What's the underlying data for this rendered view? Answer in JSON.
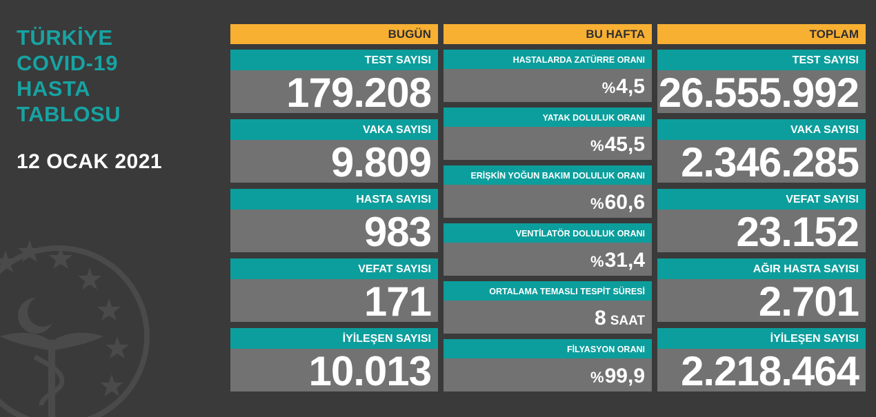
{
  "title_lines": [
    "TÜRKİYE",
    "COVID-19",
    "HASTA",
    "TABLOSU"
  ],
  "date": "12 OCAK 2021",
  "colors": {
    "background": "#3a3a3a",
    "header": "#f8b033",
    "label": "#0c9e9c",
    "value": "#727272",
    "title": "#17a3a3"
  },
  "emblem": {
    "icon": "ministry-of-health-emblem-icon"
  },
  "today": {
    "header": "BUGÜN",
    "items": [
      {
        "label": "TEST SAYISI",
        "value": "179.208"
      },
      {
        "label": "VAKA SAYISI",
        "value": "9.809"
      },
      {
        "label": "HASTA SAYISI",
        "value": "983"
      },
      {
        "label": "VEFAT SAYISI",
        "value": "171"
      },
      {
        "label": "İYİLEŞEN SAYISI",
        "value": "10.013"
      }
    ]
  },
  "week": {
    "header": "BU HAFTA",
    "items": [
      {
        "label": "HASTALARDA ZATÜRRE ORANI",
        "prefix": "%",
        "value": "4,5",
        "unit": ""
      },
      {
        "label": "YATAK DOLULUK ORANI",
        "prefix": "%",
        "value": "45,5",
        "unit": ""
      },
      {
        "label": "ERİŞKİN YOĞUN BAKIM DOLULUK ORANI",
        "prefix": "%",
        "value": "60,6",
        "unit": ""
      },
      {
        "label": "VENTİLATÖR DOLULUK ORANI",
        "prefix": "%",
        "value": "31,4",
        "unit": ""
      },
      {
        "label": "ORTALAMA TEMASLI TESPİT SÜRESİ",
        "prefix": "",
        "value": "8",
        "unit": "SAAT"
      },
      {
        "label": "FİLYASYON ORANI",
        "prefix": "%",
        "value": "99,9",
        "unit": ""
      }
    ]
  },
  "total": {
    "header": "TOPLAM",
    "items": [
      {
        "label": "TEST SAYISI",
        "value": "26.555.992"
      },
      {
        "label": "VAKA SAYISI",
        "value": "2.346.285"
      },
      {
        "label": "VEFAT SAYISI",
        "value": "23.152"
      },
      {
        "label": "AĞIR HASTA SAYISI",
        "value": "2.701"
      },
      {
        "label": "İYİLEŞEN SAYISI",
        "value": "2.218.464"
      }
    ]
  }
}
